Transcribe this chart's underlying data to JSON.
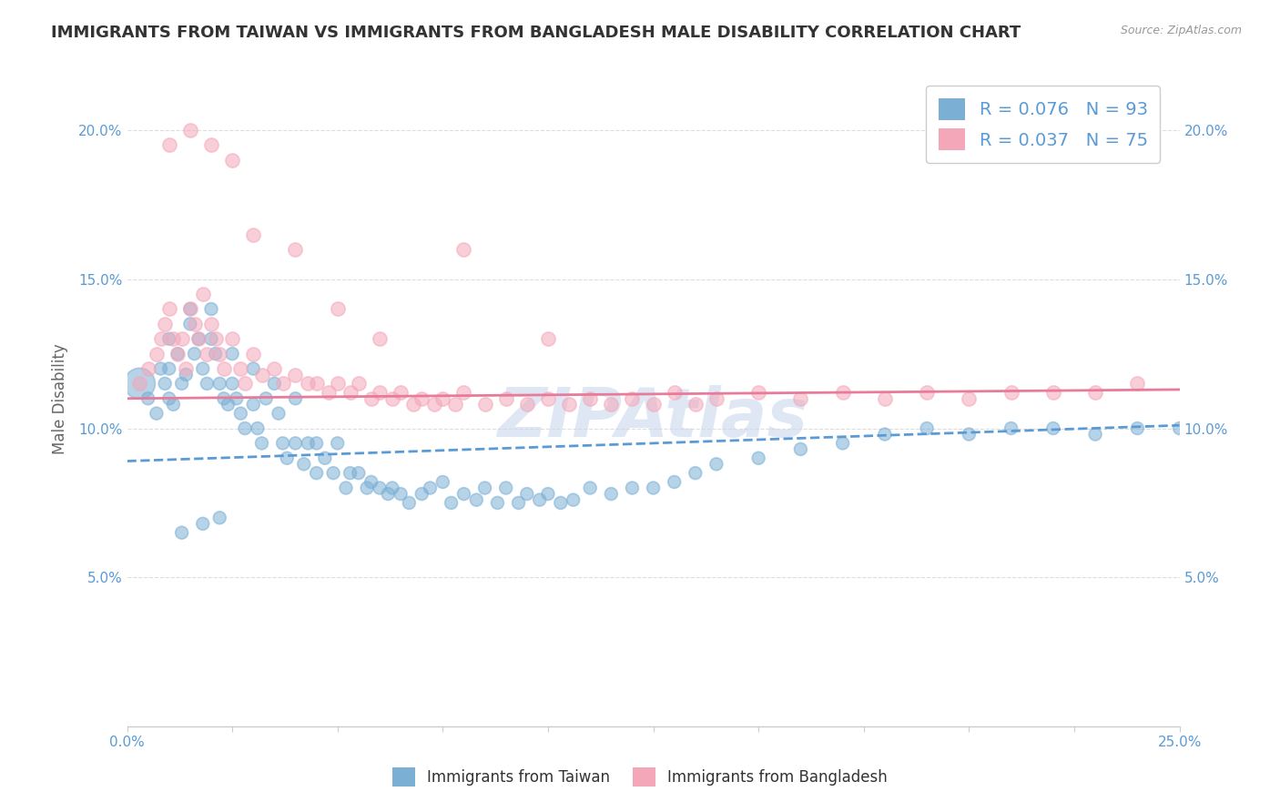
{
  "title": "IMMIGRANTS FROM TAIWAN VS IMMIGRANTS FROM BANGLADESH MALE DISABILITY CORRELATION CHART",
  "source": "Source: ZipAtlas.com",
  "ylabel": "Male Disability",
  "xlim": [
    0.0,
    0.25
  ],
  "ylim": [
    0.0,
    0.22
  ],
  "xticks": [
    0.0,
    0.025,
    0.05,
    0.075,
    0.1,
    0.125,
    0.15,
    0.175,
    0.2,
    0.225,
    0.25
  ],
  "yticks": [
    0.0,
    0.05,
    0.1,
    0.15,
    0.2
  ],
  "ytick_labels": [
    "",
    "5.0%",
    "10.0%",
    "15.0%",
    "20.0%"
  ],
  "xtick_labels": [
    "0.0%",
    "",
    "",
    "",
    "",
    "",
    "",
    "",
    "",
    "",
    "25.0%"
  ],
  "taiwan_R": 0.076,
  "taiwan_N": 93,
  "bangladesh_R": 0.037,
  "bangladesh_N": 75,
  "taiwan_color": "#7BAFD4",
  "bangladesh_color": "#F4A7B9",
  "taiwan_line_color": "#5B9BD5",
  "bangladesh_line_color": "#E87A9A",
  "legend_text_color": "#5B9BD5",
  "watermark_color": "#C8D8EC",
  "grid_color": "#DDDDDD",
  "axis_color": "#CCCCCC",
  "title_color": "#333333",
  "label_color": "#5B9BD5",
  "background_color": "#ffffff",
  "taiwan_line": {
    "x0": 0.0,
    "x1": 0.25,
    "y0": 0.089,
    "y1": 0.101
  },
  "bangladesh_line": {
    "x0": 0.0,
    "x1": 0.25,
    "y0": 0.11,
    "y1": 0.113
  },
  "taiwan_x": [
    0.003,
    0.005,
    0.007,
    0.008,
    0.009,
    0.01,
    0.01,
    0.01,
    0.011,
    0.012,
    0.013,
    0.014,
    0.015,
    0.015,
    0.016,
    0.017,
    0.018,
    0.019,
    0.02,
    0.02,
    0.021,
    0.022,
    0.023,
    0.024,
    0.025,
    0.025,
    0.026,
    0.027,
    0.028,
    0.03,
    0.03,
    0.031,
    0.032,
    0.033,
    0.035,
    0.036,
    0.037,
    0.038,
    0.04,
    0.04,
    0.042,
    0.043,
    0.045,
    0.045,
    0.047,
    0.049,
    0.05,
    0.052,
    0.053,
    0.055,
    0.057,
    0.058,
    0.06,
    0.062,
    0.063,
    0.065,
    0.067,
    0.07,
    0.072,
    0.075,
    0.077,
    0.08,
    0.083,
    0.085,
    0.088,
    0.09,
    0.093,
    0.095,
    0.098,
    0.1,
    0.103,
    0.106,
    0.11,
    0.115,
    0.12,
    0.125,
    0.13,
    0.135,
    0.14,
    0.15,
    0.16,
    0.17,
    0.18,
    0.19,
    0.2,
    0.21,
    0.22,
    0.23,
    0.24,
    0.25,
    0.013,
    0.018,
    0.022
  ],
  "taiwan_y": [
    0.115,
    0.11,
    0.105,
    0.12,
    0.115,
    0.13,
    0.12,
    0.11,
    0.108,
    0.125,
    0.115,
    0.118,
    0.14,
    0.135,
    0.125,
    0.13,
    0.12,
    0.115,
    0.14,
    0.13,
    0.125,
    0.115,
    0.11,
    0.108,
    0.125,
    0.115,
    0.11,
    0.105,
    0.1,
    0.12,
    0.108,
    0.1,
    0.095,
    0.11,
    0.115,
    0.105,
    0.095,
    0.09,
    0.11,
    0.095,
    0.088,
    0.095,
    0.095,
    0.085,
    0.09,
    0.085,
    0.095,
    0.08,
    0.085,
    0.085,
    0.08,
    0.082,
    0.08,
    0.078,
    0.08,
    0.078,
    0.075,
    0.078,
    0.08,
    0.082,
    0.075,
    0.078,
    0.076,
    0.08,
    0.075,
    0.08,
    0.075,
    0.078,
    0.076,
    0.078,
    0.075,
    0.076,
    0.08,
    0.078,
    0.08,
    0.08,
    0.082,
    0.085,
    0.088,
    0.09,
    0.093,
    0.095,
    0.098,
    0.1,
    0.098,
    0.1,
    0.1,
    0.098,
    0.1,
    0.1,
    0.065,
    0.068,
    0.07
  ],
  "taiwan_sizes": [
    600,
    100,
    100,
    100,
    100,
    100,
    100,
    100,
    100,
    100,
    100,
    100,
    100,
    100,
    100,
    100,
    100,
    100,
    100,
    100,
    100,
    100,
    100,
    100,
    100,
    100,
    100,
    100,
    100,
    100,
    100,
    100,
    100,
    100,
    100,
    100,
    100,
    100,
    100,
    100,
    100,
    100,
    100,
    100,
    100,
    100,
    100,
    100,
    100,
    100,
    100,
    100,
    100,
    100,
    100,
    100,
    100,
    100,
    100,
    100,
    100,
    100,
    100,
    100,
    100,
    100,
    100,
    100,
    100,
    100,
    100,
    100,
    100,
    100,
    100,
    100,
    100,
    100,
    100,
    100,
    100,
    100,
    100,
    100,
    100,
    100,
    100,
    100,
    100,
    100,
    100,
    100,
    100
  ],
  "bangladesh_x": [
    0.003,
    0.005,
    0.007,
    0.008,
    0.009,
    0.01,
    0.011,
    0.012,
    0.013,
    0.014,
    0.015,
    0.016,
    0.017,
    0.018,
    0.019,
    0.02,
    0.021,
    0.022,
    0.023,
    0.025,
    0.027,
    0.028,
    0.03,
    0.032,
    0.035,
    0.037,
    0.04,
    0.043,
    0.045,
    0.048,
    0.05,
    0.053,
    0.055,
    0.058,
    0.06,
    0.063,
    0.065,
    0.068,
    0.07,
    0.073,
    0.075,
    0.078,
    0.08,
    0.085,
    0.09,
    0.095,
    0.1,
    0.105,
    0.11,
    0.115,
    0.12,
    0.125,
    0.13,
    0.135,
    0.14,
    0.15,
    0.16,
    0.17,
    0.18,
    0.19,
    0.2,
    0.21,
    0.22,
    0.23,
    0.24,
    0.01,
    0.015,
    0.02,
    0.025,
    0.03,
    0.04,
    0.05,
    0.06,
    0.08,
    0.1
  ],
  "bangladesh_y": [
    0.115,
    0.12,
    0.125,
    0.13,
    0.135,
    0.14,
    0.13,
    0.125,
    0.13,
    0.12,
    0.14,
    0.135,
    0.13,
    0.145,
    0.125,
    0.135,
    0.13,
    0.125,
    0.12,
    0.13,
    0.12,
    0.115,
    0.125,
    0.118,
    0.12,
    0.115,
    0.118,
    0.115,
    0.115,
    0.112,
    0.115,
    0.112,
    0.115,
    0.11,
    0.112,
    0.11,
    0.112,
    0.108,
    0.11,
    0.108,
    0.11,
    0.108,
    0.112,
    0.108,
    0.11,
    0.108,
    0.11,
    0.108,
    0.11,
    0.108,
    0.11,
    0.108,
    0.112,
    0.108,
    0.11,
    0.112,
    0.11,
    0.112,
    0.11,
    0.112,
    0.11,
    0.112,
    0.112,
    0.112,
    0.115,
    0.195,
    0.2,
    0.195,
    0.19,
    0.165,
    0.16,
    0.14,
    0.13,
    0.16,
    0.13
  ]
}
